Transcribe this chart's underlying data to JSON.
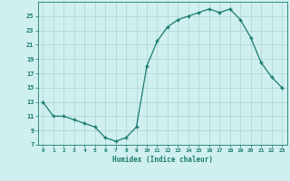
{
  "x": [
    0,
    1,
    2,
    3,
    4,
    5,
    6,
    7,
    8,
    9,
    10,
    11,
    12,
    13,
    14,
    15,
    16,
    17,
    18,
    19,
    20,
    21,
    22,
    23
  ],
  "y": [
    13,
    11,
    11,
    10.5,
    10,
    9.5,
    8,
    7.5,
    8,
    9.5,
    18,
    21.5,
    23.5,
    24.5,
    25,
    25.5,
    26,
    25.5,
    26,
    24.5,
    22,
    18.5,
    16.5,
    15
  ],
  "line_color": "#1a7a6e",
  "marker_color": "#1a7a6e",
  "bg_color": "#d0f0f0",
  "grid_color": "#b0d8d8",
  "xlabel": "Humidex (Indice chaleur)",
  "xlim": [
    -0.5,
    23.5
  ],
  "ylim": [
    7,
    27
  ],
  "yticks": [
    7,
    9,
    11,
    13,
    15,
    17,
    19,
    21,
    23,
    25
  ],
  "xticks": [
    0,
    1,
    2,
    3,
    4,
    5,
    6,
    7,
    8,
    9,
    10,
    11,
    12,
    13,
    14,
    15,
    16,
    17,
    18,
    19,
    20,
    21,
    22,
    23
  ],
  "xtick_labels": [
    "0",
    "1",
    "2",
    "3",
    "4",
    "5",
    "6",
    "7",
    "8",
    "9",
    "10",
    "11",
    "12",
    "13",
    "14",
    "15",
    "16",
    "17",
    "18",
    "19",
    "20",
    "21",
    "22",
    "23"
  ],
  "ytick_labels": [
    "7",
    "9",
    "11",
    "13",
    "15",
    "17",
    "19",
    "21",
    "23",
    "25"
  ]
}
